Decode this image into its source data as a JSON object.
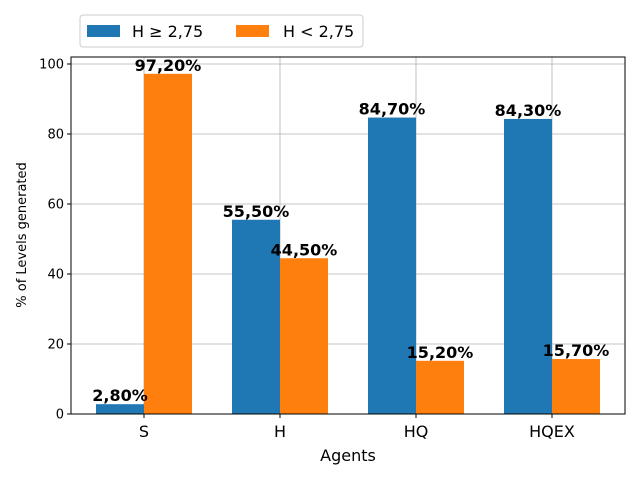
{
  "chart_data": {
    "type": "bar",
    "xlabel": "Agents",
    "ylabel": "% of Levels generated",
    "categories": [
      "S",
      "H",
      "HQ",
      "HQEX"
    ],
    "ylim": [
      0,
      102
    ],
    "yticks": [
      0,
      20,
      40,
      60,
      80,
      100
    ],
    "grid": true,
    "legend_position": "top-left, above plot",
    "series": [
      {
        "name": "H ≥ 2,75",
        "color": "#1f77b4",
        "values": [
          2.8,
          55.5,
          84.7,
          84.3
        ],
        "labels": [
          "2,80%",
          "55,50%",
          "84,70%",
          "84,30%"
        ]
      },
      {
        "name": "H < 2,75",
        "color": "#ff7f0e",
        "values": [
          97.2,
          44.5,
          15.2,
          15.7
        ],
        "labels": [
          "97,20%",
          "44,50%",
          "15,20%",
          "15,70%"
        ]
      }
    ]
  }
}
